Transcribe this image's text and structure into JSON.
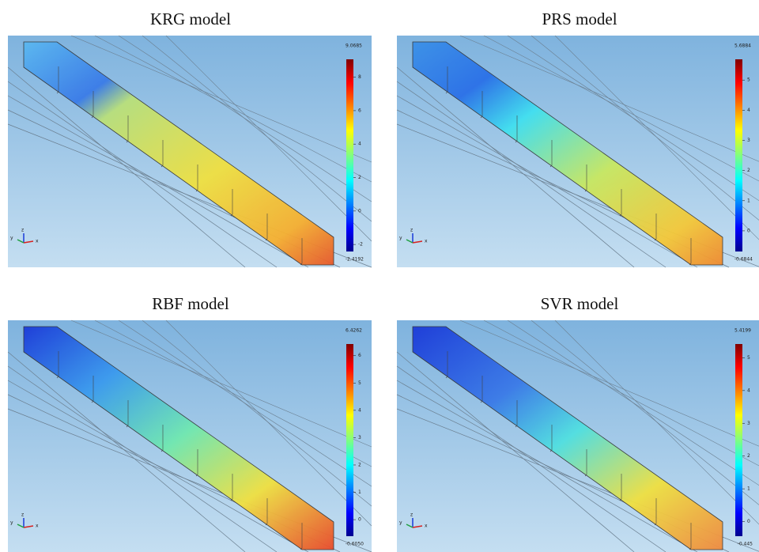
{
  "axes": {
    "x": "x",
    "y": "y",
    "z": "z"
  },
  "panels": [
    {
      "title": "KRG model",
      "colorbar": {
        "max": {
          "value": 9.0685,
          "label": "9.0685"
        },
        "min": {
          "value": -2.4192,
          "label": "-2.4192"
        },
        "ticks": [
          8,
          6,
          4,
          2,
          0,
          -2
        ]
      }
    },
    {
      "title": "PRS model",
      "colorbar": {
        "max": {
          "value": 5.6884,
          "label": "5.6884"
        },
        "min": {
          "value": -0.6844,
          "label": "-0.6844"
        },
        "ticks": [
          5,
          4,
          3,
          2,
          1,
          0
        ]
      }
    },
    {
      "title": "RBF model",
      "colorbar": {
        "max": {
          "value": 6.4262,
          "label": "6.4262"
        },
        "min": {
          "value": -0.605,
          "label": "-0.6050"
        },
        "ticks": [
          6,
          5,
          4,
          3,
          2,
          1,
          0
        ]
      }
    },
    {
      "title": "SVR model",
      "colorbar": {
        "max": {
          "value": 5.4199,
          "label": "5.4199"
        },
        "min": {
          "value": -0.445,
          "label": "-0.445"
        },
        "ticks": [
          5,
          4,
          3,
          2,
          1,
          0
        ]
      }
    }
  ]
}
